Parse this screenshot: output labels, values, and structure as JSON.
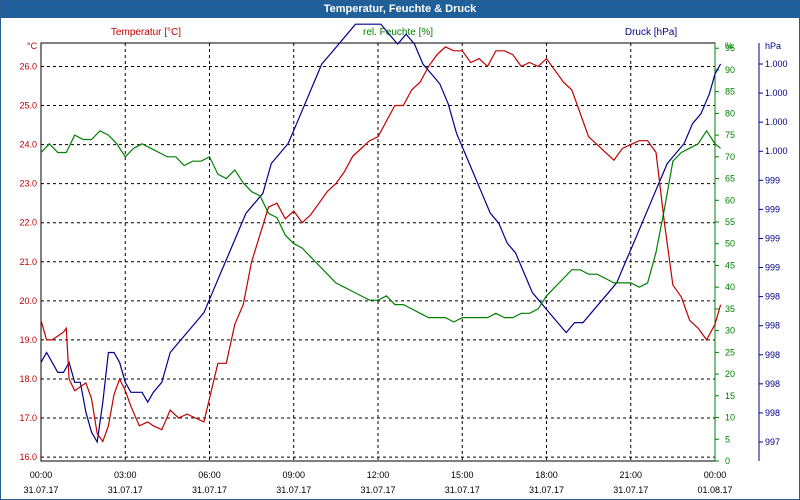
{
  "window": {
    "title": "Temperatur, Feuchte & Druck"
  },
  "colors": {
    "temperature": "#c00000",
    "humidity": "#008000",
    "pressure": "#00008b",
    "grid": "#000000"
  },
  "chart_data": {
    "type": "line",
    "title": "Temperatur, Feuchte & Druck",
    "x_labels": [
      "00:00",
      "03:00",
      "06:00",
      "09:00",
      "12:00",
      "15:00",
      "18:00",
      "21:00",
      "00:00"
    ],
    "x_dates": [
      "31.07.17",
      "31.07.17",
      "31.07.17",
      "31.07.17",
      "31.07.17",
      "31.07.17",
      "31.07.17",
      "31.07.17",
      "01.08.17"
    ],
    "grid": true,
    "axes": {
      "left": {
        "unit": "°C",
        "ticks": [
          "16.0",
          "17.0",
          "18.0",
          "19.0",
          "20.0",
          "21.0",
          "22.0",
          "23.0",
          "24.0",
          "25.0",
          "26.0"
        ],
        "ylim": [
          15.9,
          26.6
        ]
      },
      "right1": {
        "unit": "%",
        "ticks": [
          "0",
          "5",
          "10",
          "15",
          "20",
          "25",
          "30",
          "35",
          "40",
          "45",
          "50",
          "55",
          "60",
          "65",
          "70",
          "75",
          "80",
          "85",
          "90",
          "95"
        ],
        "ylim": [
          0,
          96.2
        ]
      },
      "right2": {
        "unit": "hPa",
        "ticks": [
          "997",
          "998",
          "998",
          "998",
          "998",
          "998",
          "999",
          "999",
          "999",
          "999",
          "1.000",
          "1.000",
          "1.000",
          "1.000"
        ],
        "ylim": [
          996.9,
          1000.2
        ]
      }
    },
    "series": [
      {
        "name": "Temperatur [°C]",
        "key": "temperature",
        "axis": "left",
        "points": [
          [
            0,
            19.5
          ],
          [
            0.2,
            19.0
          ],
          [
            0.4,
            19.0
          ],
          [
            0.6,
            19.1
          ],
          [
            0.8,
            19.2
          ],
          [
            0.9,
            19.3
          ],
          [
            1.0,
            18.0
          ],
          [
            1.2,
            17.7
          ],
          [
            1.4,
            17.8
          ],
          [
            1.6,
            17.9
          ],
          [
            1.8,
            17.5
          ],
          [
            2.0,
            16.6
          ],
          [
            2.2,
            16.4
          ],
          [
            2.4,
            16.8
          ],
          [
            2.6,
            17.6
          ],
          [
            2.8,
            18.0
          ],
          [
            3.0,
            17.7
          ],
          [
            3.2,
            17.3
          ],
          [
            3.5,
            16.8
          ],
          [
            3.8,
            16.9
          ],
          [
            4.0,
            16.8
          ],
          [
            4.3,
            16.7
          ],
          [
            4.6,
            17.2
          ],
          [
            4.9,
            17.0
          ],
          [
            5.2,
            17.1
          ],
          [
            5.5,
            17.0
          ],
          [
            5.8,
            16.9
          ],
          [
            6.0,
            17.5
          ],
          [
            6.3,
            18.4
          ],
          [
            6.6,
            18.4
          ],
          [
            6.9,
            19.4
          ],
          [
            7.2,
            19.9
          ],
          [
            7.5,
            21.0
          ],
          [
            7.8,
            21.7
          ],
          [
            8.1,
            22.4
          ],
          [
            8.4,
            22.5
          ],
          [
            8.7,
            22.1
          ],
          [
            9.0,
            22.3
          ],
          [
            9.3,
            22.0
          ],
          [
            9.6,
            22.2
          ],
          [
            9.9,
            22.5
          ],
          [
            10.2,
            22.8
          ],
          [
            10.5,
            23.0
          ],
          [
            10.8,
            23.3
          ],
          [
            11.1,
            23.7
          ],
          [
            11.4,
            23.9
          ],
          [
            11.7,
            24.1
          ],
          [
            12.0,
            24.2
          ],
          [
            12.3,
            24.6
          ],
          [
            12.6,
            25.0
          ],
          [
            12.9,
            25.0
          ],
          [
            13.2,
            25.4
          ],
          [
            13.5,
            25.6
          ],
          [
            13.8,
            26.0
          ],
          [
            14.1,
            26.3
          ],
          [
            14.4,
            26.5
          ],
          [
            14.7,
            26.4
          ],
          [
            15.0,
            26.4
          ],
          [
            15.3,
            26.1
          ],
          [
            15.6,
            26.2
          ],
          [
            15.9,
            26.0
          ],
          [
            16.2,
            26.4
          ],
          [
            16.5,
            26.4
          ],
          [
            16.8,
            26.3
          ],
          [
            17.1,
            26.0
          ],
          [
            17.4,
            26.1
          ],
          [
            17.7,
            26.0
          ],
          [
            18.0,
            26.2
          ],
          [
            18.3,
            25.9
          ],
          [
            18.6,
            25.6
          ],
          [
            18.9,
            25.4
          ],
          [
            19.2,
            24.8
          ],
          [
            19.5,
            24.2
          ],
          [
            19.8,
            24.0
          ],
          [
            20.1,
            23.8
          ],
          [
            20.4,
            23.6
          ],
          [
            20.7,
            23.9
          ],
          [
            21.0,
            24.0
          ],
          [
            21.3,
            24.1
          ],
          [
            21.6,
            24.1
          ],
          [
            21.9,
            23.8
          ],
          [
            22.2,
            22.0
          ],
          [
            22.5,
            20.4
          ],
          [
            22.8,
            20.1
          ],
          [
            23.1,
            19.5
          ],
          [
            23.4,
            19.3
          ],
          [
            23.7,
            19.0
          ],
          [
            24.0,
            19.4
          ],
          [
            24.2,
            19.9
          ]
        ]
      },
      {
        "name": "rel. Feuchte [%]",
        "key": "humidity",
        "axis": "right1",
        "points": [
          [
            0,
            71
          ],
          [
            0.3,
            73
          ],
          [
            0.6,
            71
          ],
          [
            0.9,
            71
          ],
          [
            1.2,
            75
          ],
          [
            1.5,
            74
          ],
          [
            1.8,
            74
          ],
          [
            2.1,
            76
          ],
          [
            2.4,
            75
          ],
          [
            2.7,
            73
          ],
          [
            3.0,
            70
          ],
          [
            3.3,
            72
          ],
          [
            3.6,
            73
          ],
          [
            3.9,
            72
          ],
          [
            4.2,
            71
          ],
          [
            4.5,
            70
          ],
          [
            4.8,
            70
          ],
          [
            5.1,
            68
          ],
          [
            5.4,
            69
          ],
          [
            5.7,
            69
          ],
          [
            6.0,
            70
          ],
          [
            6.3,
            66
          ],
          [
            6.6,
            65
          ],
          [
            6.9,
            67
          ],
          [
            7.2,
            64
          ],
          [
            7.5,
            62
          ],
          [
            7.8,
            61
          ],
          [
            8.1,
            57
          ],
          [
            8.4,
            56
          ],
          [
            8.7,
            52
          ],
          [
            9.0,
            50
          ],
          [
            9.3,
            49
          ],
          [
            9.6,
            47
          ],
          [
            9.9,
            45
          ],
          [
            10.2,
            43
          ],
          [
            10.5,
            41
          ],
          [
            10.8,
            40
          ],
          [
            11.1,
            39
          ],
          [
            11.4,
            38
          ],
          [
            11.7,
            37
          ],
          [
            12.0,
            37
          ],
          [
            12.3,
            38
          ],
          [
            12.6,
            36
          ],
          [
            12.9,
            36
          ],
          [
            13.2,
            35
          ],
          [
            13.5,
            34
          ],
          [
            13.8,
            33
          ],
          [
            14.1,
            33
          ],
          [
            14.4,
            33
          ],
          [
            14.7,
            32
          ],
          [
            15.0,
            33
          ],
          [
            15.3,
            33
          ],
          [
            15.6,
            33
          ],
          [
            15.9,
            33
          ],
          [
            16.2,
            34
          ],
          [
            16.5,
            33
          ],
          [
            16.8,
            33
          ],
          [
            17.1,
            34
          ],
          [
            17.4,
            34
          ],
          [
            17.7,
            35
          ],
          [
            18.0,
            38
          ],
          [
            18.3,
            40
          ],
          [
            18.6,
            42
          ],
          [
            18.9,
            44
          ],
          [
            19.2,
            44
          ],
          [
            19.5,
            43
          ],
          [
            19.8,
            43
          ],
          [
            20.1,
            42
          ],
          [
            20.4,
            41
          ],
          [
            20.7,
            41
          ],
          [
            21.0,
            41
          ],
          [
            21.3,
            40
          ],
          [
            21.6,
            41
          ],
          [
            21.9,
            48
          ],
          [
            22.2,
            58
          ],
          [
            22.5,
            69
          ],
          [
            22.8,
            71
          ],
          [
            23.1,
            72
          ],
          [
            23.4,
            73
          ],
          [
            23.7,
            76
          ],
          [
            24.0,
            73
          ],
          [
            24.2,
            72
          ]
        ]
      },
      {
        "name": "Druck [hPa]",
        "key": "pressure",
        "axis": "right2",
        "points": [
          [
            0,
            997.8
          ],
          [
            0.2,
            997.9
          ],
          [
            0.4,
            997.8
          ],
          [
            0.6,
            997.7
          ],
          [
            0.8,
            997.7
          ],
          [
            1.0,
            997.8
          ],
          [
            1.2,
            997.6
          ],
          [
            1.4,
            997.6
          ],
          [
            1.6,
            997.3
          ],
          [
            1.8,
            997.1
          ],
          [
            2.0,
            997.0
          ],
          [
            2.2,
            997.4
          ],
          [
            2.4,
            997.9
          ],
          [
            2.6,
            997.9
          ],
          [
            2.8,
            997.8
          ],
          [
            3.0,
            997.6
          ],
          [
            3.2,
            997.5
          ],
          [
            3.4,
            997.5
          ],
          [
            3.6,
            997.5
          ],
          [
            3.8,
            997.4
          ],
          [
            4.0,
            997.5
          ],
          [
            4.3,
            997.6
          ],
          [
            4.6,
            997.9
          ],
          [
            4.9,
            998.0
          ],
          [
            5.2,
            998.1
          ],
          [
            5.5,
            998.2
          ],
          [
            5.8,
            998.3
          ],
          [
            6.1,
            998.5
          ],
          [
            6.4,
            998.7
          ],
          [
            6.7,
            998.9
          ],
          [
            7.0,
            999.1
          ],
          [
            7.3,
            999.3
          ],
          [
            7.6,
            999.4
          ],
          [
            7.9,
            999.5
          ],
          [
            8.2,
            999.8
          ],
          [
            8.5,
            999.9
          ],
          [
            8.8,
            1000.0
          ],
          [
            9.1,
            1000.2
          ],
          [
            9.4,
            1000.4
          ],
          [
            9.7,
            1000.6
          ],
          [
            10.0,
            1000.8
          ],
          [
            10.3,
            1000.9
          ],
          [
            10.6,
            1001.0
          ],
          [
            10.9,
            1001.1
          ],
          [
            11.2,
            1001.2
          ],
          [
            11.5,
            1001.2
          ],
          [
            11.8,
            1001.2
          ],
          [
            12.1,
            1001.2
          ],
          [
            12.4,
            1001.1
          ],
          [
            12.7,
            1001.0
          ],
          [
            13.0,
            1001.1
          ],
          [
            13.3,
            1001.0
          ],
          [
            13.6,
            1000.8
          ],
          [
            13.9,
            1000.7
          ],
          [
            14.2,
            1000.6
          ],
          [
            14.5,
            1000.4
          ],
          [
            14.8,
            1000.1
          ],
          [
            15.1,
            999.9
          ],
          [
            15.4,
            999.7
          ],
          [
            15.7,
            999.5
          ],
          [
            16.0,
            999.3
          ],
          [
            16.3,
            999.2
          ],
          [
            16.6,
            999.0
          ],
          [
            16.9,
            998.9
          ],
          [
            17.2,
            998.7
          ],
          [
            17.5,
            998.5
          ],
          [
            17.8,
            998.4
          ],
          [
            18.1,
            998.3
          ],
          [
            18.4,
            998.2
          ],
          [
            18.7,
            998.1
          ],
          [
            19.0,
            998.2
          ],
          [
            19.3,
            998.2
          ],
          [
            19.6,
            998.3
          ],
          [
            19.9,
            998.4
          ],
          [
            20.2,
            998.5
          ],
          [
            20.5,
            998.6
          ],
          [
            20.8,
            998.8
          ],
          [
            21.1,
            999.0
          ],
          [
            21.4,
            999.2
          ],
          [
            21.7,
            999.4
          ],
          [
            22.0,
            999.6
          ],
          [
            22.3,
            999.8
          ],
          [
            22.6,
            999.9
          ],
          [
            22.9,
            1000.0
          ],
          [
            23.2,
            1000.2
          ],
          [
            23.5,
            1000.3
          ],
          [
            23.8,
            1000.5
          ],
          [
            24.0,
            1000.7
          ],
          [
            24.2,
            1000.8
          ]
        ]
      }
    ]
  }
}
